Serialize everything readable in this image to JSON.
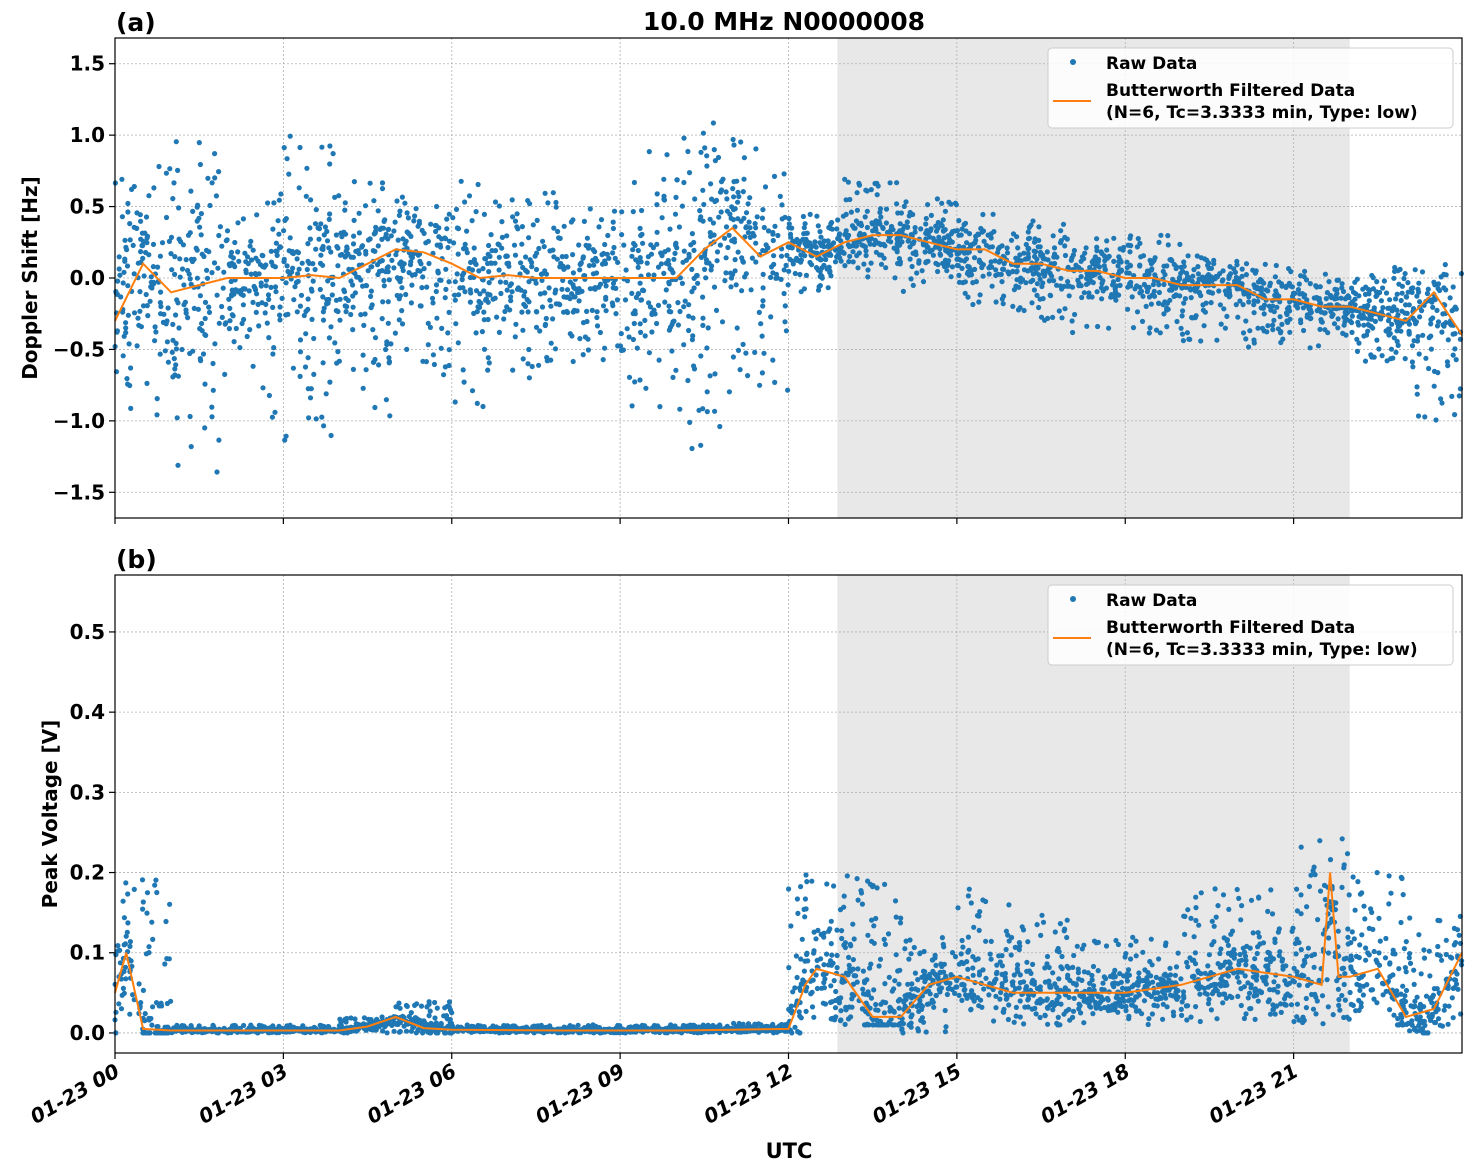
{
  "title": "10.0 MHz N0000008",
  "xlabel": "UTC",
  "x_ticks": [
    "01-23 00",
    "01-23 03",
    "01-23 06",
    "01-23 09",
    "01-23 12",
    "01-23 15",
    "01-23 18",
    "01-23 21"
  ],
  "colors": {
    "raw": "#1f77b4",
    "filtered": "#ff7f0e",
    "shade": "#e8e8e8"
  },
  "chart_data": [
    {
      "type": "scatter",
      "panel_label": "(a)",
      "ylabel": "Doppler Shift [Hz]",
      "ylim": [
        -1.68,
        1.68
      ],
      "xlim_hours_utc": [
        0,
        24
      ],
      "y_ticks": [
        1.5,
        1.0,
        0.5,
        0.0,
        -0.5,
        -1.0,
        -1.5
      ],
      "y_tick_labels": [
        "1.5",
        "1.0",
        "0.5",
        "0.0",
        "−0.5",
        "−1.0",
        "−1.5"
      ],
      "grid": true,
      "legend_placement": "top-right",
      "legend": [
        "Raw Data",
        "Butterworth Filtered Data",
        "(N=6, Tc=3.3333 min, Type: low)"
      ],
      "shaded_region_hours_utc": [
        12.87,
        22.0
      ],
      "filtered": {
        "hours": [
          0,
          0.5,
          1,
          1.5,
          2,
          2.5,
          3,
          3.5,
          4,
          4.5,
          5,
          5.5,
          6,
          6.5,
          7,
          7.5,
          8,
          8.5,
          9,
          9.5,
          10,
          10.5,
          11,
          11.5,
          12,
          12.5,
          13,
          13.5,
          14,
          14.5,
          15,
          15.5,
          16,
          16.5,
          17,
          17.5,
          18,
          18.5,
          19,
          19.5,
          20,
          20.5,
          21,
          21.5,
          22,
          22.5,
          23,
          23.5,
          24
        ],
        "values": [
          -0.3,
          0.1,
          -0.1,
          -0.05,
          0,
          0,
          0,
          0.02,
          0,
          0.1,
          0.2,
          0.18,
          0.1,
          0,
          0.02,
          0,
          0,
          0,
          0,
          0,
          0,
          0.2,
          0.35,
          0.15,
          0.25,
          0.15,
          0.25,
          0.3,
          0.3,
          0.25,
          0.2,
          0.2,
          0.1,
          0.1,
          0.05,
          0.05,
          0,
          0,
          -0.05,
          -0.05,
          -0.05,
          -0.15,
          -0.15,
          -0.2,
          -0.2,
          -0.25,
          -0.3,
          -0.1,
          -0.4
        ]
      },
      "raw_hourly_range": [
        [
          -1.0,
          0.8
        ],
        [
          -1.4,
          1.0
        ],
        [
          -1.0,
          0.6
        ],
        [
          -1.2,
          1.0
        ],
        [
          -1.0,
          0.7
        ],
        [
          -0.7,
          0.6
        ],
        [
          -0.9,
          0.7
        ],
        [
          -0.7,
          0.6
        ],
        [
          -0.6,
          0.5
        ],
        [
          -1.0,
          0.9
        ],
        [
          -1.2,
          1.1
        ],
        [
          -0.8,
          1.0
        ],
        [
          -0.1,
          0.5
        ],
        [
          0.0,
          0.7
        ],
        [
          -0.1,
          0.6
        ],
        [
          -0.2,
          0.5
        ],
        [
          -0.3,
          0.4
        ],
        [
          -0.4,
          0.3
        ],
        [
          -0.4,
          0.3
        ],
        [
          -0.45,
          0.2
        ],
        [
          -0.5,
          0.1
        ],
        [
          -0.5,
          0.05
        ],
        [
          -0.6,
          0.1
        ],
        [
          -1.0,
          0.1
        ]
      ]
    },
    {
      "type": "scatter",
      "panel_label": "(b)",
      "ylabel": "Peak Voltage [V]",
      "ylim": [
        -0.025,
        0.571
      ],
      "xlim_hours_utc": [
        0,
        24
      ],
      "y_ticks": [
        0.5,
        0.4,
        0.3,
        0.2,
        0.1,
        0.0
      ],
      "y_tick_labels": [
        "0.5",
        "0.4",
        "0.3",
        "0.2",
        "0.1",
        "0.0"
      ],
      "grid": true,
      "legend_placement": "top-right",
      "legend": [
        "Raw Data",
        "Butterworth Filtered Data",
        "(N=6, Tc=3.3333 min, Type: low)"
      ],
      "shaded_region_hours_utc": [
        12.87,
        22.0
      ],
      "filtered": {
        "hours": [
          0,
          0.2,
          0.5,
          1,
          2,
          3,
          4,
          4.5,
          5,
          5.5,
          6,
          8,
          10,
          11,
          12,
          12.3,
          12.5,
          13,
          13.5,
          14,
          14.5,
          15,
          15.5,
          16,
          17,
          18,
          19,
          20,
          21,
          21.5,
          21.65,
          21.8,
          22,
          22.5,
          23,
          23.5,
          24
        ],
        "values": [
          0.05,
          0.1,
          0.005,
          0.003,
          0.003,
          0.003,
          0.003,
          0.008,
          0.02,
          0.006,
          0.004,
          0.003,
          0.003,
          0.004,
          0.005,
          0.06,
          0.08,
          0.07,
          0.02,
          0.02,
          0.06,
          0.07,
          0.06,
          0.05,
          0.05,
          0.05,
          0.06,
          0.08,
          0.07,
          0.06,
          0.2,
          0.07,
          0.07,
          0.08,
          0.02,
          0.03,
          0.1
        ]
      },
      "raw_hourly_range": [
        [
          0,
          0.2
        ],
        [
          0,
          0.01
        ],
        [
          0,
          0.01
        ],
        [
          0,
          0.01
        ],
        [
          0,
          0.02
        ],
        [
          0,
          0.04
        ],
        [
          0,
          0.01
        ],
        [
          0,
          0.01
        ],
        [
          0,
          0.01
        ],
        [
          0,
          0.01
        ],
        [
          0,
          0.01
        ],
        [
          0,
          0.012
        ],
        [
          0,
          0.2
        ],
        [
          0.01,
          0.2
        ],
        [
          0,
          0.12
        ],
        [
          0.01,
          0.18
        ],
        [
          0.01,
          0.15
        ],
        [
          0.01,
          0.12
        ],
        [
          0.01,
          0.12
        ],
        [
          0.01,
          0.18
        ],
        [
          0.01,
          0.18
        ],
        [
          0.01,
          0.25
        ],
        [
          0.01,
          0.2
        ],
        [
          0,
          0.15
        ]
      ]
    }
  ]
}
